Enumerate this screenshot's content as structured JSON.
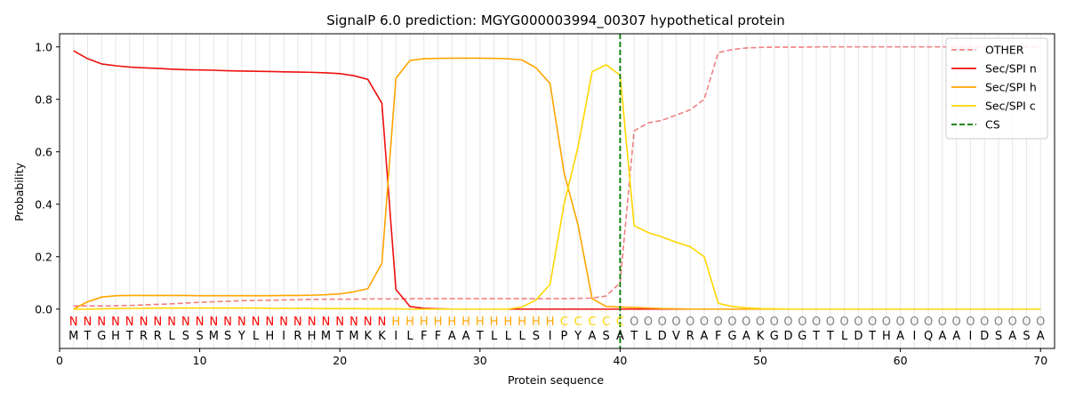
{
  "chart_data": {
    "type": "line",
    "title": "SignalP 6.0 prediction: MGYG000003994_00307 hypothetical protein",
    "xlabel": "Protein sequence",
    "ylabel": "Probability",
    "xlim": [
      0,
      71
    ],
    "ylim": [
      -0.15,
      1.05
    ],
    "x_ticks": [
      0,
      10,
      20,
      30,
      40,
      50,
      60,
      70
    ],
    "y_ticks": [
      "0.0",
      "0.2",
      "0.4",
      "0.6",
      "0.8",
      "1.0"
    ],
    "grid": "vertical lines at each residue",
    "legend_position": "top-right",
    "sequence": "MTGHTRRLSSMSYLHIRHMTMKKILFFAATLLLSIPYASATLDVRAFGAKGDGTTLDTHAIQAAIDSASA",
    "region_labels": "NNNNNNNNNNNNNNNNNNNNNNNHHHHHHHHHHHHCCCCCOOOOOOOOOOOOOOOOOOOOOOOOOOOOOO",
    "region_colors": {
      "N": "#ff0000",
      "H": "#ffa500",
      "C": "#ffd700",
      "O": "#808080"
    },
    "cleavage_site": 40,
    "series": [
      {
        "name": "OTHER",
        "color": "#f08080",
        "dash": true,
        "values": [
          0.012,
          0.012,
          0.012,
          0.013,
          0.014,
          0.016,
          0.018,
          0.02,
          0.023,
          0.026,
          0.028,
          0.03,
          0.032,
          0.033,
          0.034,
          0.035,
          0.036,
          0.037,
          0.038,
          0.038,
          0.038,
          0.039,
          0.039,
          0.039,
          0.04,
          0.04,
          0.04,
          0.04,
          0.04,
          0.04,
          0.04,
          0.04,
          0.04,
          0.04,
          0.04,
          0.04,
          0.041,
          0.042,
          0.05,
          0.1,
          0.68,
          0.71,
          0.72,
          0.74,
          0.76,
          0.8,
          0.978,
          0.99,
          0.996,
          0.998,
          0.999,
          0.999,
          0.999,
          1.0,
          1.0,
          1.0,
          1.0,
          1.0,
          1.0,
          1.0,
          1.0,
          1.0,
          1.0,
          1.0,
          1.0,
          1.0,
          1.0,
          1.0,
          1.0,
          1.0
        ]
      },
      {
        "name": "Sec/SPI n",
        "color": "#ee1111",
        "dash": false,
        "values": [
          0.985,
          0.955,
          0.935,
          0.928,
          0.923,
          0.92,
          0.918,
          0.915,
          0.913,
          0.912,
          0.911,
          0.909,
          0.908,
          0.907,
          0.906,
          0.905,
          0.904,
          0.903,
          0.901,
          0.898,
          0.89,
          0.876,
          0.785,
          0.075,
          0.01,
          0.003,
          0.001,
          0.0,
          0.0,
          0.0,
          0.0,
          0.0,
          0.0,
          0.0,
          0.0,
          0.0,
          0.0,
          0.0,
          0.0,
          0.0,
          0.0,
          0.0,
          0.0,
          0.0,
          0.0,
          0.0,
          0.0,
          0.0,
          0.0,
          0.0,
          0.0,
          0.0,
          0.0,
          0.0,
          0.0,
          0.0,
          0.0,
          0.0,
          0.0,
          0.0,
          0.0,
          0.0,
          0.0,
          0.0,
          0.0,
          0.0,
          0.0,
          0.0,
          0.0,
          0.0
        ]
      },
      {
        "name": "Sec/SPI h",
        "color": "#ffa500",
        "dash": false,
        "values": [
          0.0,
          0.028,
          0.046,
          0.051,
          0.052,
          0.052,
          0.052,
          0.052,
          0.052,
          0.051,
          0.051,
          0.051,
          0.051,
          0.051,
          0.051,
          0.052,
          0.052,
          0.053,
          0.055,
          0.058,
          0.066,
          0.078,
          0.175,
          0.88,
          0.948,
          0.955,
          0.956,
          0.957,
          0.957,
          0.957,
          0.956,
          0.955,
          0.95,
          0.92,
          0.86,
          0.52,
          0.32,
          0.04,
          0.01,
          0.008,
          0.006,
          0.004,
          0.002,
          0.001,
          0.0,
          0.0,
          0.0,
          0.0,
          0.0,
          0.0,
          0.0,
          0.0,
          0.0,
          0.0,
          0.0,
          0.0,
          0.0,
          0.0,
          0.0,
          0.0,
          0.0,
          0.0,
          0.0,
          0.0,
          0.0,
          0.0,
          0.0,
          0.0,
          0.0,
          0.0
        ]
      },
      {
        "name": "Sec/SPI c",
        "color": "#ffd700",
        "dash": false,
        "values": [
          0.0,
          0.0,
          0.001,
          0.002,
          0.003,
          0.003,
          0.004,
          0.004,
          0.004,
          0.004,
          0.004,
          0.004,
          0.004,
          0.004,
          0.003,
          0.003,
          0.003,
          0.003,
          0.002,
          0.002,
          0.002,
          0.001,
          0.001,
          0.001,
          0.0,
          0.0,
          0.0,
          0.0,
          0.0,
          0.0,
          0.0,
          0.0,
          0.008,
          0.035,
          0.095,
          0.4,
          0.62,
          0.905,
          0.932,
          0.892,
          0.318,
          0.292,
          0.275,
          0.255,
          0.238,
          0.2,
          0.022,
          0.01,
          0.005,
          0.002,
          0.001,
          0.0,
          0.0,
          0.0,
          0.0,
          0.0,
          0.0,
          0.0,
          0.0,
          0.0,
          0.0,
          0.0,
          0.0,
          0.0,
          0.0,
          0.0,
          0.0,
          0.0,
          0.0,
          0.0
        ]
      }
    ],
    "cs_series": {
      "name": "CS",
      "color": "#007800"
    }
  }
}
